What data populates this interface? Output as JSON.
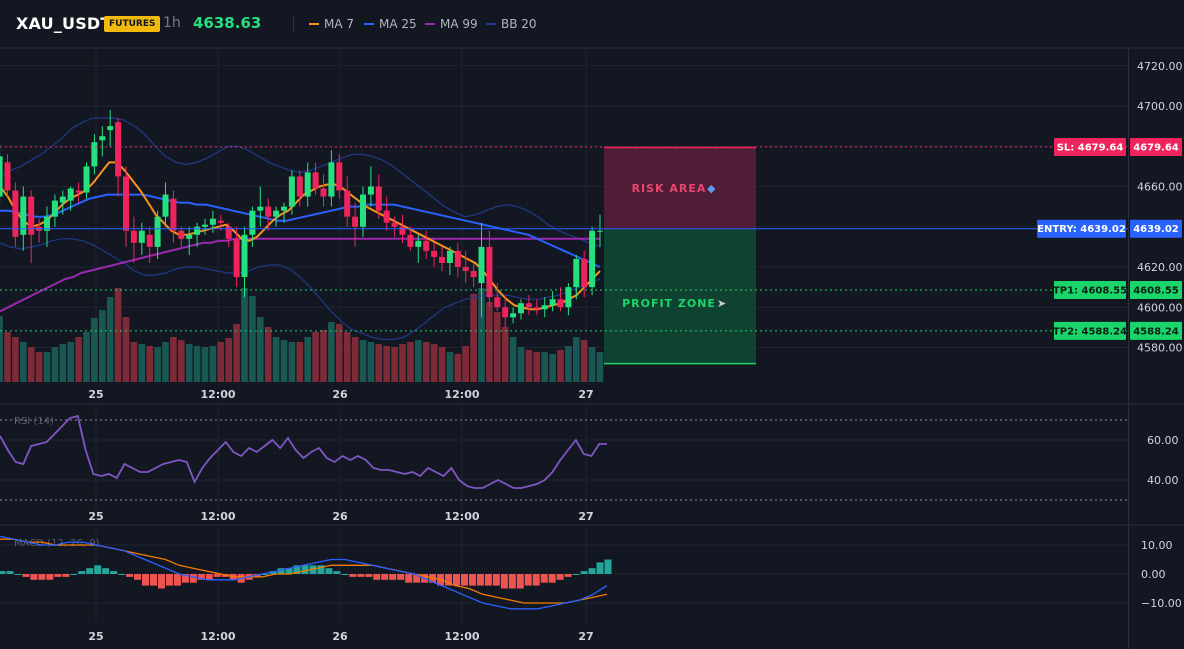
{
  "header": {
    "symbol": "XAU_USDT",
    "badge": "FUTURES",
    "timeframe": "1h",
    "last_price": "4638.63",
    "legend": [
      {
        "label": "MA 7",
        "color": "#f7931a"
      },
      {
        "label": "MA 25",
        "color": "#2962ff"
      },
      {
        "label": "MA 99",
        "color": "#9c27b0"
      },
      {
        "label": "BB 20",
        "color": "#1e3a8a"
      }
    ]
  },
  "colors": {
    "up": "#26e07f",
    "down": "#f0245c",
    "vol_up": "#1b5e58",
    "vol_down": "#8a2e3b",
    "grid": "#1f2330",
    "bg": "#131722",
    "entry": "#2962ff",
    "sl": "#f0245c",
    "tp": "#1fd46a",
    "rsi": "#7e57c2",
    "macd": "#2962ff",
    "signal": "#f57c00",
    "hist_up": "#26a69a",
    "hist_down": "#ef5350"
  },
  "chart_data": [
    {
      "type": "candlestick",
      "panel": "price",
      "x_ticks": [
        "25",
        "12:00",
        "26",
        "12:00",
        "27"
      ],
      "y_ticks": [
        4580,
        4600,
        4620,
        4640,
        4660,
        4680,
        4700,
        4720
      ],
      "y_tick_labels": [
        "4580.00",
        "4600.00",
        "4620.00",
        "4640.00",
        "4660.00",
        "4680.00",
        "4700.00",
        "4720.00"
      ],
      "ylim": [
        4575,
        4731
      ],
      "candles": [
        [
          4655,
          4682,
          4651,
          4675
        ],
        [
          4672,
          4676,
          4655,
          4658
        ],
        [
          4658,
          4662,
          4630,
          4635
        ],
        [
          4636,
          4660,
          4628,
          4655
        ],
        [
          4655,
          4658,
          4622,
          4636
        ],
        [
          4640,
          4644,
          4632,
          4638
        ],
        [
          4638,
          4650,
          4630,
          4645
        ],
        [
          4645,
          4656,
          4640,
          4653
        ],
        [
          4652,
          4658,
          4646,
          4655
        ],
        [
          4653,
          4660,
          4648,
          4659
        ],
        [
          4658,
          4662,
          4652,
          4657
        ],
        [
          4657,
          4672,
          4654,
          4670
        ],
        [
          4670,
          4686,
          4666,
          4682
        ],
        [
          4683,
          4690,
          4675,
          4685
        ],
        [
          4688,
          4698,
          4680,
          4690
        ],
        [
          4692,
          4694,
          4655,
          4665
        ],
        [
          4665,
          4670,
          4630,
          4638
        ],
        [
          4638,
          4645,
          4622,
          4632
        ],
        [
          4632,
          4642,
          4626,
          4638
        ],
        [
          4636,
          4640,
          4622,
          4630
        ],
        [
          4630,
          4648,
          4624,
          4645
        ],
        [
          4645,
          4662,
          4640,
          4656
        ],
        [
          4654,
          4658,
          4632,
          4638
        ],
        [
          4638,
          4640,
          4630,
          4634
        ],
        [
          4634,
          4640,
          4626,
          4636
        ],
        [
          4636,
          4642,
          4630,
          4640
        ],
        [
          4640,
          4644,
          4636,
          4641
        ],
        [
          4641,
          4648,
          4637,
          4644
        ],
        [
          4643,
          4646,
          4638,
          4642
        ],
        [
          4640,
          4642,
          4630,
          4634
        ],
        [
          4634,
          4640,
          4610,
          4615
        ],
        [
          4615,
          4640,
          4605,
          4636
        ],
        [
          4636,
          4650,
          4630,
          4648
        ],
        [
          4648,
          4660,
          4640,
          4650
        ],
        [
          4650,
          4654,
          4638,
          4645
        ],
        [
          4645,
          4650,
          4640,
          4648
        ],
        [
          4648,
          4652,
          4642,
          4650
        ],
        [
          4650,
          4668,
          4646,
          4665
        ],
        [
          4665,
          4668,
          4650,
          4655
        ],
        [
          4655,
          4672,
          4650,
          4667
        ],
        [
          4667,
          4672,
          4656,
          4659
        ],
        [
          4659,
          4666,
          4650,
          4655
        ],
        [
          4655,
          4678,
          4650,
          4672
        ],
        [
          4672,
          4676,
          4654,
          4658
        ],
        [
          4658,
          4665,
          4640,
          4645
        ],
        [
          4645,
          4652,
          4630,
          4640
        ],
        [
          4640,
          4660,
          4635,
          4656
        ],
        [
          4656,
          4670,
          4650,
          4660
        ],
        [
          4660,
          4666,
          4644,
          4648
        ],
        [
          4648,
          4655,
          4638,
          4642
        ],
        [
          4642,
          4645,
          4635,
          4640
        ],
        [
          4640,
          4646,
          4632,
          4636
        ],
        [
          4636,
          4640,
          4628,
          4630
        ],
        [
          4630,
          4636,
          4622,
          4633
        ],
        [
          4633,
          4638,
          4624,
          4628
        ],
        [
          4628,
          4632,
          4620,
          4625
        ],
        [
          4625,
          4630,
          4618,
          4622
        ],
        [
          4622,
          4630,
          4616,
          4628
        ],
        [
          4628,
          4632,
          4615,
          4620
        ],
        [
          4620,
          4628,
          4612,
          4618
        ],
        [
          4618,
          4622,
          4610,
          4615
        ],
        [
          4612,
          4642,
          4595,
          4630
        ],
        [
          4630,
          4638,
          4600,
          4605
        ],
        [
          4605,
          4612,
          4598,
          4600
        ],
        [
          4600,
          4605,
          4590,
          4595
        ],
        [
          4595,
          4600,
          4592,
          4597
        ],
        [
          4597,
          4604,
          4594,
          4602
        ],
        [
          4602,
          4606,
          4596,
          4600
        ],
        [
          4600,
          4604,
          4596,
          4599
        ],
        [
          4599,
          4605,
          4595,
          4601
        ],
        [
          4601,
          4608,
          4598,
          4604
        ],
        [
          4604,
          4610,
          4598,
          4600
        ],
        [
          4600,
          4612,
          4596,
          4610
        ],
        [
          4610,
          4626,
          4604,
          4624
        ],
        [
          4624,
          4628,
          4605,
          4610
        ],
        [
          4610,
          4640,
          4606,
          4638
        ],
        [
          4638,
          4646,
          4630,
          4638
        ]
      ],
      "volume": [
        66,
        50,
        45,
        40,
        35,
        30,
        30,
        35,
        38,
        40,
        45,
        50,
        64,
        72,
        85,
        94,
        65,
        40,
        38,
        36,
        35,
        40,
        45,
        42,
        38,
        36,
        35,
        36,
        40,
        44,
        58,
        94,
        86,
        65,
        55,
        45,
        42,
        40,
        40,
        45,
        50,
        52,
        60,
        58,
        50,
        45,
        42,
        40,
        38,
        36,
        35,
        38,
        40,
        42,
        40,
        38,
        35,
        30,
        28,
        36,
        88,
        94,
        80,
        70,
        55,
        45,
        35,
        32,
        30,
        30,
        28,
        32,
        36,
        45,
        42,
        35,
        30
      ],
      "bb_upper": [
        4665,
        4668,
        4670,
        4673,
        4676,
        4680,
        4684,
        4689,
        4692,
        4694,
        4694,
        4694,
        4693,
        4690,
        4686,
        4680,
        4675,
        4672,
        4671,
        4672,
        4674,
        4677,
        4680,
        4680,
        4678,
        4675,
        4672,
        4670,
        4668,
        4667,
        4668,
        4670,
        4672,
        4674,
        4676,
        4676,
        4675,
        4673,
        4670,
        4666,
        4662,
        4658,
        4654,
        4650,
        4647,
        4645,
        4646,
        4648,
        4650,
        4651,
        4650,
        4648,
        4645,
        4641,
        4638,
        4636,
        4634,
        4632,
        4630
      ],
      "bb_lower": [
        4632,
        4630,
        4629,
        4630,
        4631,
        4633,
        4634,
        4634,
        4633,
        4631,
        4628,
        4625,
        4622,
        4618,
        4616,
        4616,
        4617,
        4619,
        4620,
        4620,
        4619,
        4618,
        4617,
        4617,
        4618,
        4620,
        4621,
        4621,
        4619,
        4615,
        4610,
        4604,
        4598,
        4593,
        4589,
        4587,
        4585,
        4584,
        4584,
        4585,
        4588,
        4592,
        4596,
        4600,
        4602,
        4604,
        4605,
        4606,
        4606,
        4606,
        4605,
        4604,
        4604,
        4605,
        4606,
        4608,
        4610,
        4612,
        4614
      ],
      "ma7": [
        4660,
        4655,
        4648,
        4643,
        4640,
        4641,
        4643,
        4647,
        4651,
        4654,
        4656,
        4658,
        4662,
        4667,
        4672,
        4672,
        4668,
        4663,
        4658,
        4652,
        4646,
        4642,
        4638,
        4636,
        4636,
        4637,
        4638,
        4639,
        4640,
        4641,
        4638,
        4634,
        4633,
        4635,
        4639,
        4643,
        4646,
        4648,
        4652,
        4656,
        4658,
        4660,
        4661,
        4661,
        4659,
        4656,
        4653,
        4650,
        4648,
        4646,
        4644,
        4642,
        4640,
        4638,
        4636,
        4634,
        4632,
        4630,
        4628,
        4626,
        4624,
        4622,
        4618,
        4613,
        4608,
        4604,
        4601,
        4600,
        4599,
        4599,
        4600,
        4601,
        4602,
        4604,
        4606,
        4610,
        4614,
        4618
      ],
      "ma25": [
        4648,
        4648,
        4647,
        4646,
        4645,
        4645,
        4646,
        4648,
        4650,
        4652,
        4654,
        4655,
        4656,
        4656,
        4656,
        4656,
        4656,
        4655,
        4654,
        4653,
        4652,
        4652,
        4651,
        4651,
        4650,
        4649,
        4648,
        4647,
        4646,
        4645,
        4644,
        4643,
        4643,
        4644,
        4645,
        4646,
        4647,
        4648,
        4649,
        4650,
        4650,
        4651,
        4651,
        4651,
        4651,
        4650,
        4649,
        4648,
        4647,
        4646,
        4645,
        4644,
        4643,
        4642,
        4641,
        4640,
        4639,
        4638,
        4637,
        4636,
        4634,
        4632,
        4630,
        4628,
        4626,
        4624,
        4622,
        4620
      ],
      "ma99": [
        4598,
        4600,
        4602,
        4604,
        4606,
        4608,
        4610,
        4612,
        4614,
        4615,
        4617,
        4618,
        4619,
        4620,
        4621,
        4622,
        4623,
        4624,
        4625,
        4626,
        4627,
        4628,
        4629,
        4630,
        4631,
        4632,
        4632,
        4633,
        4633,
        4634,
        4634,
        4634,
        4634,
        4634,
        4634,
        4634,
        4634,
        4634,
        4634,
        4634,
        4634,
        4634,
        4634,
        4634,
        4634,
        4634,
        4634,
        4634,
        4634,
        4634,
        4634,
        4634,
        4634,
        4634,
        4634,
        4634,
        4634,
        4634,
        4634,
        4634,
        4634,
        4634,
        4634,
        4634,
        4634,
        4634,
        4634,
        4634,
        4634,
        4634,
        4634,
        4634,
        4634,
        4634,
        4634
      ],
      "levels": {
        "sl": {
          "label": "SL: 4679.64",
          "axis": "4679.64",
          "value": 4679.64
        },
        "entry": {
          "label": "ENTRY: 4639.02",
          "axis": "4639.02",
          "value": 4639.02
        },
        "tp1": {
          "label": "TP1: 4608.55",
          "axis": "4608.55",
          "value": 4608.55
        },
        "tp2": {
          "label": "TP2: 4588.24",
          "axis": "4588.24",
          "value": 4588.24
        }
      },
      "zones": {
        "risk_label": "RISK AREA",
        "profit_label": "PROFIT ZONE",
        "profit_bottom": 4572
      }
    },
    {
      "type": "line",
      "panel": "rsi",
      "title": "RSI (14)",
      "y_ticks": [
        40,
        60
      ],
      "y_tick_labels": [
        "40.00",
        "60.00"
      ],
      "guides": [
        70,
        30
      ],
      "ylim": [
        28,
        72
      ],
      "x_ticks": [
        "25",
        "12:00",
        "26",
        "12:00",
        "27"
      ],
      "values": [
        62,
        55,
        49,
        48,
        57,
        58,
        59,
        63,
        67,
        71,
        72,
        55,
        43,
        42,
        43,
        41,
        48,
        46,
        44,
        44,
        46,
        48,
        49,
        50,
        49,
        39,
        46,
        51,
        55,
        59,
        54,
        52,
        56,
        54,
        57,
        60,
        56,
        61,
        55,
        51,
        54,
        56,
        51,
        49,
        52,
        50,
        52,
        50,
        46,
        45,
        45,
        44,
        43,
        44,
        42,
        46,
        44,
        42,
        46,
        40,
        37,
        36,
        36,
        38,
        40,
        38,
        36,
        36,
        37,
        38,
        40,
        44,
        50,
        55,
        60,
        53,
        52,
        58,
        58
      ],
      "values_alt": [
        66,
        60,
        55,
        52,
        51,
        56,
        58,
        60,
        64,
        69,
        71,
        53,
        44,
        43,
        44,
        42,
        47,
        45,
        44,
        44,
        46,
        48,
        49,
        50,
        49,
        39,
        47,
        52,
        55,
        58,
        53,
        52,
        57,
        54,
        56,
        60,
        55,
        60,
        56,
        52,
        55,
        57,
        52,
        50,
        52,
        50,
        52,
        49,
        46,
        45,
        45,
        44,
        43,
        44,
        42,
        46,
        44,
        42,
        45,
        40,
        38,
        37,
        36,
        38,
        40,
        38,
        37,
        36,
        37,
        38,
        40,
        44,
        50,
        56,
        57,
        50,
        56,
        57,
        57
      ]
    },
    {
      "type": "bar+line",
      "panel": "macd",
      "title": "MACD (12, 26, 9)",
      "y_ticks": [
        10,
        0,
        -10
      ],
      "y_tick_labels": [
        "10.00",
        "0.00",
        "−10.00"
      ],
      "ylim": [
        -17,
        14
      ],
      "x_ticks": [
        "25",
        "12:00",
        "26",
        "12:00",
        "27"
      ],
      "histogram": [
        1,
        1,
        0,
        -1,
        -2,
        -2,
        -2,
        -1,
        -1,
        0,
        1,
        2,
        3,
        2,
        1,
        0,
        -1,
        -2,
        -4,
        -4,
        -5,
        -4,
        -4,
        -3,
        -3,
        -2,
        -2,
        -1,
        -1,
        -2,
        -3,
        -2,
        -1,
        0,
        1,
        2,
        2,
        3,
        3,
        3,
        3,
        2,
        1,
        0,
        -1,
        -1,
        -1,
        -2,
        -2,
        -2,
        -2,
        -3,
        -3,
        -3,
        -3,
        -4,
        -4,
        -4,
        -4,
        -4,
        -4,
        -4,
        -4,
        -5,
        -5,
        -5,
        -4,
        -4,
        -3,
        -3,
        -2,
        -1,
        0,
        1,
        2,
        4,
        5
      ],
      "macd": [
        13,
        12,
        11,
        10,
        10,
        11,
        11,
        10,
        9,
        8,
        6,
        4,
        2,
        0,
        -1,
        -2,
        -2,
        -2,
        -1,
        0,
        1,
        2,
        3,
        4,
        5,
        5,
        4,
        3,
        2,
        1,
        0,
        -2,
        -4,
        -6,
        -8,
        -10,
        -11,
        -12,
        -12,
        -12,
        -11,
        -10,
        -9,
        -7,
        -4
      ],
      "signal": [
        12,
        12,
        11,
        11,
        10,
        10,
        10,
        10,
        9,
        8,
        7,
        6,
        5,
        3,
        2,
        1,
        0,
        -1,
        -1,
        -1,
        0,
        0,
        1,
        2,
        3,
        3,
        3,
        3,
        2,
        1,
        0,
        -1,
        -2,
        -4,
        -5,
        -7,
        -8,
        -9,
        -10,
        -10,
        -10,
        -10,
        -9,
        -8,
        -7
      ]
    }
  ]
}
